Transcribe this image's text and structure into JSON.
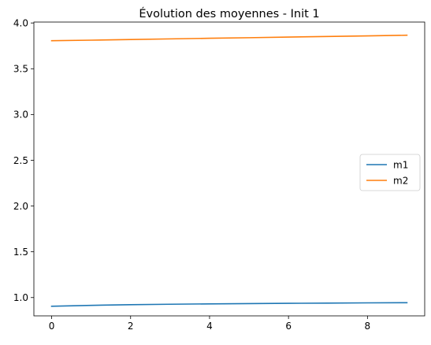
{
  "chart_data": {
    "type": "line",
    "title": "Évolution des moyennes - Init 1",
    "xlabel": "",
    "ylabel": "",
    "x": [
      0,
      1,
      2,
      3,
      4,
      5,
      6,
      7,
      8,
      9
    ],
    "series": [
      {
        "name": "m1",
        "color": "#1f77b4",
        "values": [
          0.905,
          0.915,
          0.922,
          0.927,
          0.931,
          0.934,
          0.937,
          0.939,
          0.942,
          0.944
        ]
      },
      {
        "name": "m2",
        "color": "#ff7f0e",
        "values": [
          3.806,
          3.812,
          3.819,
          3.826,
          3.833,
          3.839,
          3.846,
          3.852,
          3.859,
          3.866
        ]
      }
    ],
    "xlim": [
      -0.45,
      9.45
    ],
    "ylim": [
      0.8,
      4.01
    ],
    "xticks": [
      0,
      2,
      4,
      6,
      8
    ],
    "xtick_labels": [
      "0",
      "2",
      "4",
      "6",
      "8"
    ],
    "yticks": [
      1.0,
      1.5,
      2.0,
      2.5,
      3.0,
      3.5,
      4.0
    ],
    "ytick_labels": [
      "1.0",
      "1.5",
      "2.0",
      "2.5",
      "3.0",
      "3.5",
      "4.0"
    ],
    "grid": false,
    "legend": "center-right"
  }
}
